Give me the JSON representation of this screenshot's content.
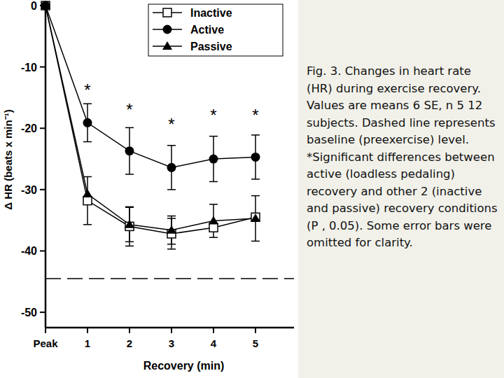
{
  "chart_data": {
    "type": "line",
    "x_label": "Recovery (min)",
    "y_label": "Δ HR (beats x min⁻¹)",
    "categories": [
      "Peak",
      "1",
      "2",
      "3",
      "4",
      "5"
    ],
    "ylim": [
      -52.5,
      0
    ],
    "yticks": [
      0,
      -10,
      -20,
      -30,
      -40,
      -50
    ],
    "legend": "top-right",
    "series": [
      {
        "name": "Inactive",
        "color": "#000000",
        "marker": "square-open",
        "line_style": "solid",
        "values": [
          0,
          -31.8,
          -36.0,
          -37.2,
          -36.2,
          -34.5
        ],
        "errors": [
          null,
          3.9,
          3.2,
          2.5,
          null,
          null
        ]
      },
      {
        "name": "Active",
        "color": "#000000",
        "marker": "circle",
        "line_style": "solid",
        "values": [
          0,
          -19.1,
          -23.7,
          -26.4,
          -25.0,
          -24.7
        ],
        "errors": [
          null,
          3.1,
          3.8,
          3.6,
          3.7,
          3.6
        ]
      },
      {
        "name": "Passive",
        "color": "#000000",
        "marker": "triangle",
        "line_style": "solid",
        "values": [
          0,
          -30.7,
          -35.7,
          -36.6,
          -35.1,
          -34.7
        ],
        "errors": [
          null,
          null,
          2.8,
          2.3,
          2.7,
          3.7
        ]
      }
    ],
    "baseline": -44.5,
    "annotations": [
      {
        "text": "*",
        "x": 1,
        "y": -13.3
      },
      {
        "text": "*",
        "x": 2,
        "y": -16.5
      },
      {
        "text": "*",
        "x": 3,
        "y": -19.0
      },
      {
        "text": "*",
        "x": 4,
        "y": -17.5
      },
      {
        "text": "*",
        "x": 5,
        "y": -17.5
      }
    ],
    "caption": "Fig. 3. Changes in heart rate (HR) during exercise recovery. Values are means 6 SE, n 5 12 subjects. Dashed line represents baseline (preexercise) level. *Significant differences between active (loadless pedaling) recovery and other 2 (inactive and passive) recovery conditions (P , 0.05). Some error bars were omitted for clarity."
  }
}
